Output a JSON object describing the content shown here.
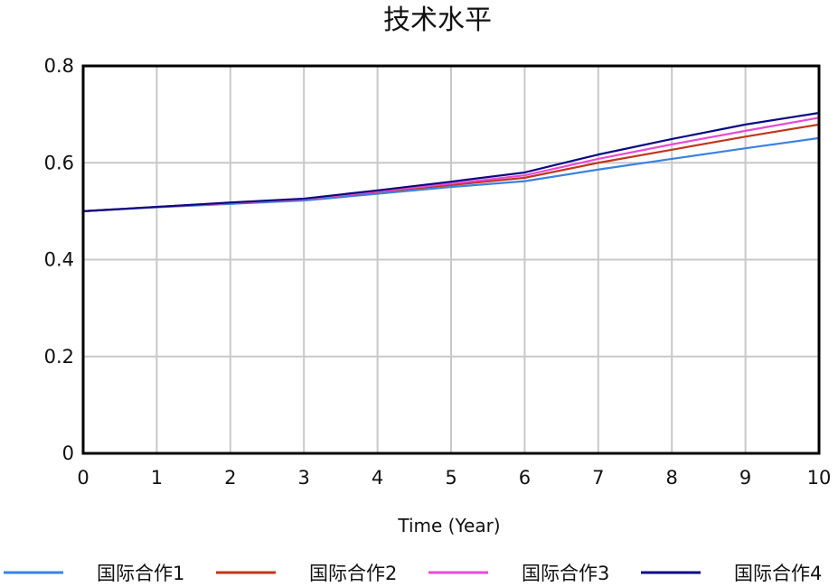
{
  "chart_data": {
    "type": "line",
    "title": "技术水平",
    "xlabel": "Time (Year)",
    "ylabel": "",
    "x": [
      0,
      1,
      2,
      3,
      4,
      5,
      6,
      7,
      8,
      9,
      10
    ],
    "xlim": [
      0,
      10
    ],
    "ylim": [
      0,
      0.8
    ],
    "xticks": [
      "0",
      "1",
      "2",
      "3",
      "4",
      "5",
      "6",
      "7",
      "8",
      "9",
      "10"
    ],
    "yticks": [
      "0",
      "0.2",
      "0.4",
      "0.6",
      "0.8"
    ],
    "grid": true,
    "legend_position": "bottom",
    "series": [
      {
        "name": "国际合作1",
        "color": "#3b82e0",
        "values": [
          0.5,
          0.508,
          0.515,
          0.522,
          0.536,
          0.55,
          0.562,
          0.586,
          0.608,
          0.63,
          0.651
        ]
      },
      {
        "name": "国际合作2",
        "color": "#c0361c",
        "values": [
          0.5,
          0.509,
          0.517,
          0.525,
          0.54,
          0.554,
          0.569,
          0.6,
          0.627,
          0.654,
          0.679
        ]
      },
      {
        "name": "国际合作3",
        "color": "#e84ad6",
        "values": [
          0.5,
          0.509,
          0.517,
          0.525,
          0.541,
          0.557,
          0.574,
          0.608,
          0.638,
          0.666,
          0.693
        ]
      },
      {
        "name": "国际合作4",
        "color": "#0a0a80",
        "values": [
          0.5,
          0.509,
          0.518,
          0.526,
          0.543,
          0.561,
          0.58,
          0.617,
          0.649,
          0.679,
          0.703
        ]
      }
    ]
  }
}
